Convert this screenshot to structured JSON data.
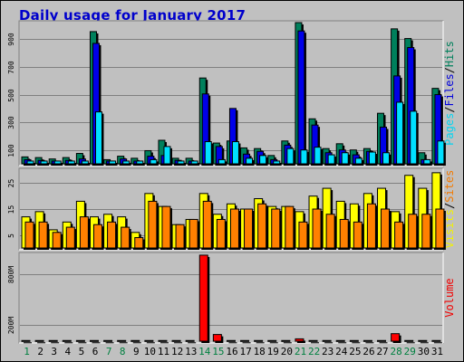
{
  "title": "Daily usage for January 2017",
  "colors": {
    "hits": "#00805c",
    "files": "#0000e8",
    "pages": "#00e0ff",
    "visits": "#ffff00",
    "sites": "#ff8000",
    "volume": "#ff0000",
    "weekday_label": "#000000",
    "weekend_label": "#008040"
  },
  "chart_data": [
    {
      "type": "bar",
      "panel": "hits-files-pages",
      "categories": [
        "1",
        "2",
        "3",
        "4",
        "5",
        "6",
        "7",
        "8",
        "9",
        "10",
        "11",
        "12",
        "13",
        "14",
        "15",
        "16",
        "17",
        "18",
        "19",
        "20",
        "21",
        "22",
        "23",
        "24",
        "25",
        "26",
        "27",
        "28",
        "29",
        "30",
        "31"
      ],
      "weekend_days": [
        "1",
        "7",
        "8",
        "14",
        "15",
        "21",
        "22",
        "28",
        "29"
      ],
      "ylim": [
        0,
        1020
      ],
      "tick_labels": [
        "100",
        "300",
        "500",
        "700",
        "900"
      ],
      "series": [
        {
          "name": "Hits",
          "values": [
            50,
            45,
            35,
            45,
            75,
            955,
            30,
            55,
            40,
            95,
            170,
            40,
            40,
            620,
            150,
            165,
            115,
            110,
            60,
            165,
            1020,
            325,
            110,
            145,
            100,
            110,
            365,
            975,
            905,
            80,
            545
          ]
        },
        {
          "name": "Files",
          "values": [
            30,
            25,
            20,
            25,
            35,
            870,
            20,
            35,
            20,
            55,
            60,
            25,
            20,
            505,
            125,
            400,
            70,
            90,
            30,
            135,
            960,
            280,
            80,
            100,
            65,
            90,
            265,
            635,
            840,
            30,
            500
          ]
        },
        {
          "name": "Pages",
          "values": [
            20,
            20,
            20,
            20,
            20,
            375,
            20,
            20,
            20,
            30,
            125,
            20,
            20,
            160,
            30,
            160,
            40,
            60,
            20,
            110,
            100,
            120,
            65,
            80,
            40,
            85,
            80,
            445,
            380,
            30,
            165
          ]
        }
      ],
      "legend": [
        "Pages",
        "Files",
        "Hits"
      ]
    },
    {
      "type": "bar",
      "panel": "visits-sites",
      "categories": [
        "1",
        "2",
        "3",
        "4",
        "5",
        "6",
        "7",
        "8",
        "9",
        "10",
        "11",
        "12",
        "13",
        "14",
        "15",
        "16",
        "17",
        "18",
        "19",
        "20",
        "21",
        "22",
        "23",
        "24",
        "25",
        "26",
        "27",
        "28",
        "29",
        "30",
        "31"
      ],
      "ylim": [
        0,
        30
      ],
      "tick_labels": [
        "5",
        "15",
        "25"
      ],
      "series": [
        {
          "name": "Visits",
          "values": [
            12,
            14,
            7,
            10,
            18,
            12,
            13,
            12,
            6,
            21,
            16,
            9,
            11,
            21,
            13,
            17,
            15,
            19,
            16,
            16,
            14,
            20,
            23,
            18,
            17,
            21,
            23,
            14,
            28,
            23,
            29
          ]
        },
        {
          "name": "Sites",
          "values": [
            10,
            10,
            6,
            8,
            12,
            9,
            10,
            8,
            4,
            18,
            16,
            9,
            11,
            18,
            11,
            15,
            15,
            17,
            15,
            16,
            10,
            15,
            13,
            11,
            10,
            17,
            15,
            10,
            13,
            13,
            15
          ]
        }
      ],
      "legend": [
        "Visits",
        "Sites"
      ]
    },
    {
      "type": "bar",
      "panel": "volume",
      "categories": [
        "1",
        "2",
        "3",
        "4",
        "5",
        "6",
        "7",
        "8",
        "9",
        "10",
        "11",
        "12",
        "13",
        "14",
        "15",
        "16",
        "17",
        "18",
        "19",
        "20",
        "21",
        "22",
        "23",
        "24",
        "25",
        "26",
        "27",
        "28",
        "29",
        "30",
        "31"
      ],
      "ylim": [
        0,
        1040
      ],
      "tick_labels": [
        "200M",
        "800M"
      ],
      "series": [
        {
          "name": "Volume",
          "values": [
            8,
            8,
            8,
            8,
            8,
            8,
            8,
            8,
            8,
            8,
            8,
            8,
            8,
            1030,
            80,
            8,
            8,
            8,
            8,
            8,
            28,
            8,
            8,
            8,
            8,
            8,
            8,
            90,
            8,
            8,
            8
          ]
        }
      ],
      "legend": [
        "Volume"
      ]
    }
  ]
}
